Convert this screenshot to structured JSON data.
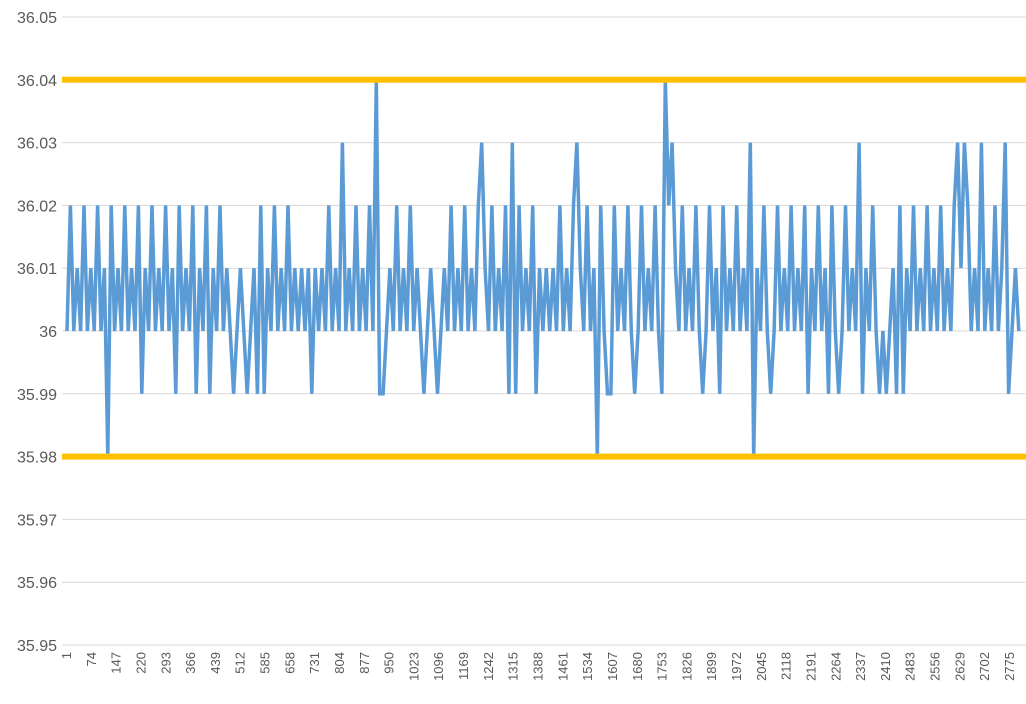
{
  "chart_data": {
    "type": "line",
    "title": "",
    "xlabel": "",
    "ylabel": "",
    "ylim": [
      35.95,
      36.05
    ],
    "grid": true,
    "legend": "none",
    "y_ticks": [
      "36.05",
      "36.04",
      "36.03",
      "36.02",
      "36.01",
      "36",
      "35.99",
      "35.98",
      "35.97",
      "35.96",
      "35.95"
    ],
    "x_ticks": [
      "1",
      "74",
      "147",
      "220",
      "293",
      "366",
      "439",
      "512",
      "585",
      "658",
      "731",
      "804",
      "877",
      "950",
      "1023",
      "1096",
      "1169",
      "1242",
      "1315",
      "1388",
      "1461",
      "1534",
      "1607",
      "1680",
      "1753",
      "1826",
      "1899",
      "1972",
      "2045",
      "2118",
      "2191",
      "2264",
      "2337",
      "2410",
      "2483",
      "2556",
      "2629",
      "2702",
      "2775"
    ],
    "reference_lines": [
      {
        "y": 36.04,
        "color": "#ffc000"
      },
      {
        "y": 35.98,
        "color": "#ffc000"
      }
    ],
    "series": [
      {
        "color": "#5b9bd5",
        "x": [
          1,
          11,
          21,
          31,
          41,
          51,
          61,
          71,
          81,
          91,
          101,
          111,
          121,
          131,
          141,
          151,
          161,
          171,
          181,
          191,
          201,
          211,
          221,
          231,
          241,
          251,
          261,
          271,
          281,
          291,
          301,
          311,
          321,
          331,
          341,
          351,
          361,
          371,
          381,
          391,
          401,
          411,
          421,
          431,
          441,
          451,
          461,
          471,
          481,
          491,
          501,
          511,
          521,
          531,
          541,
          551,
          561,
          571,
          581,
          591,
          601,
          611,
          621,
          631,
          641,
          651,
          661,
          671,
          681,
          691,
          701,
          711,
          721,
          731,
          741,
          751,
          761,
          771,
          781,
          791,
          801,
          811,
          821,
          831,
          841,
          851,
          861,
          871,
          881,
          891,
          901,
          911,
          921,
          931,
          941,
          951,
          961,
          971,
          981,
          991,
          1001,
          1011,
          1021,
          1031,
          1041,
          1051,
          1061,
          1071,
          1081,
          1091,
          1101,
          1111,
          1121,
          1131,
          1141,
          1151,
          1161,
          1171,
          1181,
          1191,
          1201,
          1211,
          1221,
          1231,
          1241,
          1251,
          1261,
          1271,
          1281,
          1291,
          1301,
          1311,
          1321,
          1331,
          1341,
          1351,
          1361,
          1371,
          1381,
          1391,
          1401,
          1411,
          1421,
          1431,
          1441,
          1451,
          1461,
          1471,
          1481,
          1491,
          1501,
          1511,
          1521,
          1531,
          1541,
          1551,
          1561,
          1571,
          1581,
          1591,
          1601,
          1611,
          1621,
          1631,
          1641,
          1651,
          1661,
          1671,
          1681,
          1691,
          1701,
          1711,
          1721,
          1731,
          1741,
          1751,
          1761,
          1771,
          1781,
          1791,
          1801,
          1811,
          1821,
          1831,
          1841,
          1851,
          1861,
          1871,
          1881,
          1891,
          1901,
          1911,
          1921,
          1931,
          1941,
          1951,
          1961,
          1971,
          1981,
          1991,
          2001,
          2011,
          2021,
          2031,
          2041,
          2051,
          2061,
          2071,
          2081,
          2091,
          2101,
          2111,
          2121,
          2131,
          2141,
          2151,
          2161,
          2171,
          2181,
          2191,
          2201,
          2211,
          2221,
          2231,
          2241,
          2251,
          2261,
          2271,
          2281,
          2291,
          2301,
          2311,
          2321,
          2331,
          2341,
          2351,
          2361,
          2371,
          2381,
          2391,
          2401,
          2411,
          2421,
          2431,
          2441,
          2451,
          2461,
          2471,
          2481,
          2491,
          2501,
          2511,
          2521,
          2531,
          2541,
          2551,
          2561,
          2571,
          2581,
          2591,
          2601,
          2611,
          2621,
          2631,
          2641,
          2651,
          2661,
          2671,
          2681,
          2691,
          2701,
          2711,
          2721,
          2731,
          2741,
          2751,
          2761,
          2771,
          2781,
          2791,
          2801
        ],
        "y": [
          36,
          36.02,
          36,
          36.01,
          36,
          36.02,
          36,
          36.01,
          36,
          36.02,
          36,
          36.01,
          35.98,
          36.02,
          36,
          36.01,
          36,
          36.02,
          36,
          36.01,
          36,
          36.02,
          35.99,
          36.01,
          36,
          36.02,
          36,
          36.01,
          36,
          36.02,
          36,
          36.01,
          35.99,
          36.02,
          36,
          36.01,
          36,
          36.02,
          35.99,
          36.01,
          36,
          36.02,
          35.99,
          36.01,
          36,
          36.02,
          36,
          36.01,
          36,
          35.99,
          36,
          36.01,
          36,
          35.99,
          36,
          36.01,
          35.99,
          36.02,
          35.99,
          36.01,
          36,
          36.02,
          36,
          36.01,
          36,
          36.02,
          36,
          36.01,
          36,
          36.01,
          36,
          36.01,
          35.99,
          36.01,
          36,
          36.01,
          36,
          36.02,
          36,
          36.01,
          36,
          36.03,
          36,
          36.01,
          36,
          36.02,
          36,
          36.01,
          36,
          36.02,
          36,
          36.04,
          35.99,
          35.99,
          36,
          36.01,
          36,
          36.02,
          36,
          36.01,
          36,
          36.02,
          36,
          36.01,
          36,
          35.99,
          36,
          36.01,
          36,
          35.99,
          36,
          36.01,
          36,
          36.02,
          36,
          36.01,
          36,
          36.02,
          36,
          36.01,
          36,
          36.02,
          36.03,
          36.01,
          36,
          36.02,
          36,
          36.01,
          36,
          36.02,
          35.99,
          36.03,
          35.99,
          36.02,
          36,
          36.01,
          36,
          36.02,
          35.99,
          36.01,
          36,
          36.01,
          36,
          36.01,
          36,
          36.02,
          36,
          36.01,
          36,
          36.02,
          36.03,
          36.01,
          36,
          36.02,
          36,
          36.01,
          35.98,
          36.02,
          36,
          35.99,
          35.99,
          36.02,
          36,
          36.01,
          36,
          36.02,
          36,
          35.99,
          36,
          36.02,
          36,
          36.01,
          36,
          36.02,
          36,
          35.99,
          36.04,
          36.02,
          36.03,
          36.01,
          36,
          36.02,
          36,
          36.01,
          36,
          36.02,
          36,
          35.99,
          36,
          36.02,
          36,
          36.01,
          35.99,
          36.02,
          36,
          36.01,
          36,
          36.02,
          36,
          36.01,
          36,
          36.03,
          35.98,
          36.01,
          36,
          36.02,
          36,
          35.99,
          36,
          36.02,
          36,
          36.01,
          36,
          36.02,
          36,
          36.01,
          36,
          36.02,
          35.99,
          36.01,
          36,
          36.02,
          36,
          36.01,
          35.99,
          36.02,
          36,
          35.99,
          36,
          36.02,
          36,
          36.01,
          36,
          36.03,
          35.99,
          36.01,
          36,
          36.02,
          36,
          35.99,
          36,
          35.99,
          36,
          36.01,
          35.99,
          36.02,
          35.99,
          36.01,
          36,
          36.02,
          36,
          36.01,
          36,
          36.02,
          36,
          36.01,
          36,
          36.02,
          36,
          36.01,
          36,
          36.02,
          36.03,
          36.01,
          36.03,
          36.02,
          36,
          36.01,
          36,
          36.03,
          36,
          36.01,
          36,
          36.02,
          36,
          36.01,
          36.03,
          35.99,
          36,
          36.01,
          36
        ]
      }
    ]
  }
}
